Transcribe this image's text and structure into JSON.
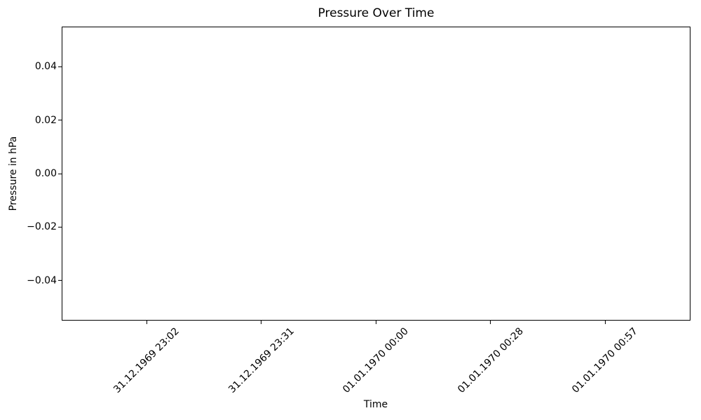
{
  "chart_data": {
    "type": "line",
    "title": "Pressure Over Time",
    "xlabel": "Time",
    "ylabel": "Pressure in hPa",
    "x_tick_labels": [
      "31.12.1969 23:02",
      "31.12.1969 23:31",
      "01.01.1970 00:00",
      "01.01.1970 00:28",
      "01.01.1970 00:57"
    ],
    "y_ticks": [
      0.04,
      0.02,
      0.0,
      -0.02,
      -0.04
    ],
    "y_tick_labels": [
      "0.04",
      "0.02",
      "0.00",
      "−0.02",
      "−0.04"
    ],
    "ylim": [
      -0.055,
      0.055
    ],
    "series": [],
    "grid": false,
    "legend": null,
    "x_tick_rotation_deg": 45
  },
  "colors": {
    "background": "#ffffff",
    "text": "#000000",
    "spine": "#000000"
  }
}
